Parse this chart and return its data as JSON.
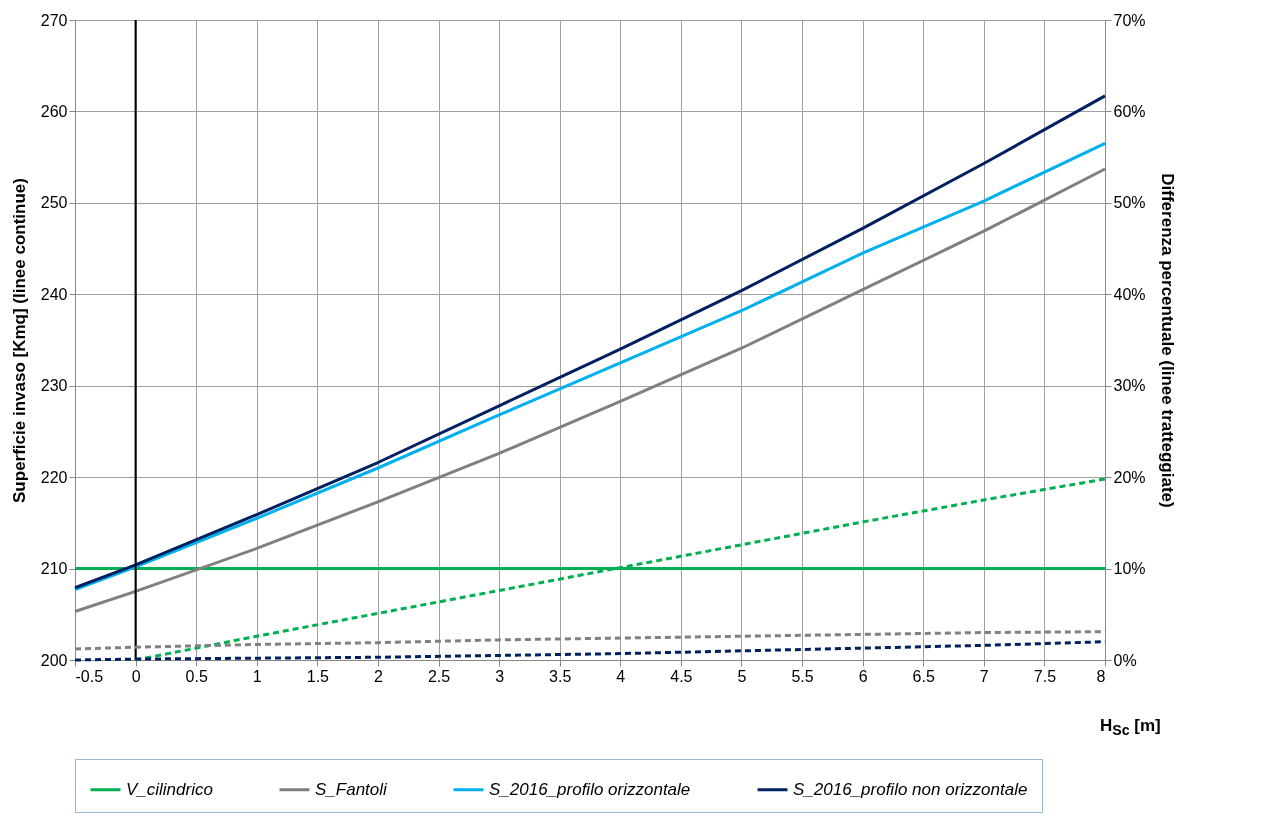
{
  "chart_data": {
    "type": "line",
    "xlabel": "H$_{Sc}$ [m]",
    "ylabel": "Superficie invaso [Kmq] (linee continue)",
    "y2label": "Differenza percentuale (linee tratteggiate)",
    "x": [
      -0.5,
      0,
      1,
      2,
      3,
      4,
      5,
      6,
      7,
      8
    ],
    "series": [
      {
        "name": "V_cilindrico",
        "color": "#00b050",
        "values": [
          210,
          210,
          210,
          210,
          210,
          210,
          210,
          210,
          210,
          210
        ]
      },
      {
        "name": "S_Fantoli",
        "color": "#808080",
        "values": [
          205.3,
          207.5,
          212.2,
          217.3,
          222.6,
          228.3,
          234.1,
          240.5,
          246.9,
          253.7
        ]
      },
      {
        "name": "S_2016_profilo orizzontale",
        "color": "#00b0f0",
        "values": [
          207.7,
          210.2,
          215.5,
          221,
          226.8,
          232.5,
          238.2,
          244.5,
          250.2,
          256.5
        ]
      },
      {
        "name": "S_2016_profilo non orizzontale",
        "color": "#002060",
        "values": [
          207.9,
          210.4,
          215.9,
          221.6,
          227.8,
          234,
          240.4,
          247.2,
          254.3,
          261.7
        ]
      },
      {
        "color": "#00b050",
        "axis": "y2",
        "line_style": "dashed",
        "values": [
          null,
          0,
          2.6,
          5.1,
          7.6,
          10.1,
          12.6,
          15.1,
          17.5,
          19.8
        ]
      },
      {
        "color": "#808080",
        "axis": "y2",
        "line_style": "dashed",
        "values": [
          1.2,
          1.4,
          1.7,
          1.9,
          2.2,
          2.4,
          2.6,
          2.8,
          3,
          3.1
        ]
      },
      {
        "color": "#002060",
        "axis": "y2",
        "line_style": "dashed",
        "values": [
          0,
          0.1,
          0.2,
          0.3,
          0.5,
          0.7,
          1,
          1.3,
          1.6,
          2
        ]
      }
    ],
    "xlim": [
      -0.5,
      8
    ],
    "xticks": [
      -0.5,
      0,
      0.5,
      1,
      1.5,
      2,
      2.5,
      3,
      3.5,
      4,
      4.5,
      5,
      5.5,
      6,
      6.5,
      7,
      7.5,
      8
    ],
    "ylim": [
      200,
      270
    ],
    "yticks": [
      200,
      210,
      220,
      230,
      240,
      250,
      260,
      270
    ],
    "y2lim": [
      0,
      70
    ],
    "y2ticks": [
      {
        "value": 0,
        "label": "0%"
      },
      {
        "value": 10,
        "label": "10%"
      },
      {
        "value": 20,
        "label": "20%"
      },
      {
        "value": 30,
        "label": "30%"
      },
      {
        "value": 40,
        "label": "40%"
      },
      {
        "value": 50,
        "label": "50%"
      },
      {
        "value": 60,
        "label": "60%"
      },
      {
        "value": 70,
        "label": "70%"
      }
    ],
    "ref_lines": [
      {
        "axis": "x",
        "value": 0,
        "color": "#000000"
      }
    ],
    "grid": true,
    "legend": "bottom",
    "marker": "none"
  }
}
